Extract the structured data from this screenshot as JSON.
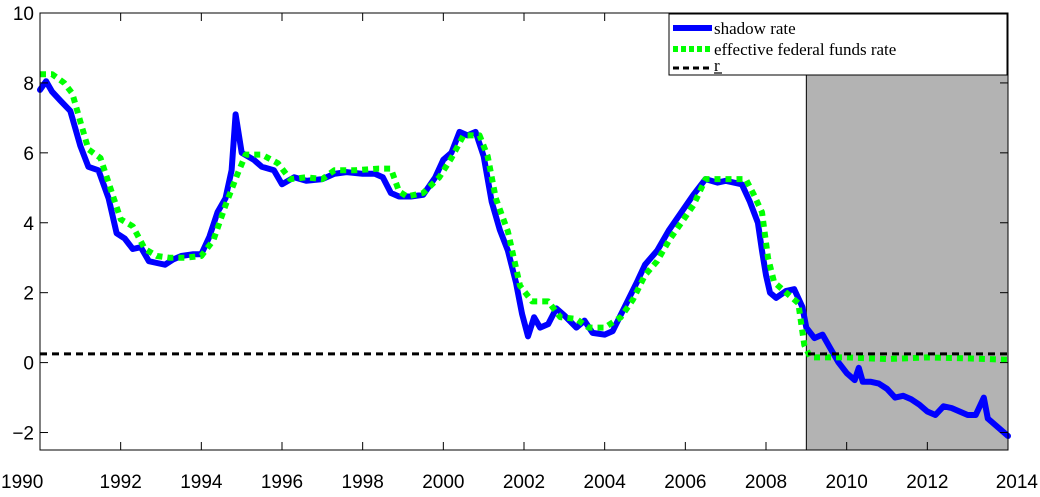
{
  "chart_data": {
    "type": "line",
    "title": "",
    "xlabel": "",
    "ylabel": "",
    "xlim": [
      1990,
      2014
    ],
    "ylim": [
      -2.5,
      10
    ],
    "xticks": [
      1990,
      1992,
      1994,
      1996,
      1998,
      2000,
      2002,
      2004,
      2006,
      2008,
      2010,
      2012,
      2014
    ],
    "yticks": [
      -2,
      0,
      2,
      4,
      6,
      8,
      10
    ],
    "xtick_labels": [
      "1990",
      "1992",
      "1994",
      "1996",
      "1998",
      "2000",
      "2002",
      "2004",
      "2006",
      "2008",
      "2010",
      "2012",
      "2014"
    ],
    "ytick_labels": [
      "−2",
      "0",
      "2",
      "4",
      "6",
      "8",
      "10"
    ],
    "grid": false,
    "legend_position": "top-right",
    "shaded_region": {
      "x": [
        2009,
        2014
      ],
      "color": "#b3b3b3"
    },
    "series": [
      {
        "name": "shadow rate",
        "style": "solid",
        "color": "#0000ff",
        "points": [
          [
            1990.0,
            7.8
          ],
          [
            1990.15,
            8.05
          ],
          [
            1990.3,
            7.75
          ],
          [
            1990.5,
            7.5
          ],
          [
            1990.75,
            7.2
          ],
          [
            1991.0,
            6.2
          ],
          [
            1991.2,
            5.6
          ],
          [
            1991.45,
            5.5
          ],
          [
            1991.7,
            4.7
          ],
          [
            1991.9,
            3.7
          ],
          [
            1992.1,
            3.55
          ],
          [
            1992.3,
            3.25
          ],
          [
            1992.5,
            3.3
          ],
          [
            1992.7,
            2.9
          ],
          [
            1992.9,
            2.85
          ],
          [
            1993.1,
            2.8
          ],
          [
            1993.3,
            2.95
          ],
          [
            1993.5,
            3.05
          ],
          [
            1993.8,
            3.1
          ],
          [
            1994.0,
            3.1
          ],
          [
            1994.2,
            3.6
          ],
          [
            1994.4,
            4.3
          ],
          [
            1994.6,
            4.7
          ],
          [
            1994.75,
            5.5
          ],
          [
            1994.85,
            7.1
          ],
          [
            1995.0,
            6.0
          ],
          [
            1995.3,
            5.8
          ],
          [
            1995.5,
            5.6
          ],
          [
            1995.8,
            5.5
          ],
          [
            1996.0,
            5.1
          ],
          [
            1996.3,
            5.3
          ],
          [
            1996.6,
            5.2
          ],
          [
            1997.0,
            5.25
          ],
          [
            1997.3,
            5.4
          ],
          [
            1997.6,
            5.45
          ],
          [
            1998.0,
            5.4
          ],
          [
            1998.3,
            5.4
          ],
          [
            1998.5,
            5.3
          ],
          [
            1998.7,
            4.85
          ],
          [
            1998.9,
            4.75
          ],
          [
            1999.2,
            4.75
          ],
          [
            1999.5,
            4.8
          ],
          [
            1999.8,
            5.3
          ],
          [
            2000.0,
            5.8
          ],
          [
            2000.2,
            6.0
          ],
          [
            2000.4,
            6.6
          ],
          [
            2000.6,
            6.5
          ],
          [
            2000.8,
            6.6
          ],
          [
            2001.0,
            5.9
          ],
          [
            2001.2,
            4.6
          ],
          [
            2001.4,
            3.8
          ],
          [
            2001.6,
            3.2
          ],
          [
            2001.8,
            2.3
          ],
          [
            2001.95,
            1.4
          ],
          [
            2002.1,
            0.75
          ],
          [
            2002.25,
            1.3
          ],
          [
            2002.4,
            1.0
          ],
          [
            2002.6,
            1.1
          ],
          [
            2002.8,
            1.55
          ],
          [
            2003.0,
            1.35
          ],
          [
            2003.3,
            1.0
          ],
          [
            2003.5,
            1.2
          ],
          [
            2003.7,
            0.85
          ],
          [
            2004.0,
            0.8
          ],
          [
            2004.2,
            0.9
          ],
          [
            2004.5,
            1.6
          ],
          [
            2004.8,
            2.3
          ],
          [
            2005.0,
            2.8
          ],
          [
            2005.3,
            3.2
          ],
          [
            2005.6,
            3.8
          ],
          [
            2005.9,
            4.3
          ],
          [
            2006.2,
            4.8
          ],
          [
            2006.5,
            5.25
          ],
          [
            2006.8,
            5.15
          ],
          [
            2007.0,
            5.2
          ],
          [
            2007.4,
            5.1
          ],
          [
            2007.6,
            4.6
          ],
          [
            2007.8,
            4.0
          ],
          [
            2007.9,
            3.2
          ],
          [
            2008.0,
            2.5
          ],
          [
            2008.1,
            2.0
          ],
          [
            2008.25,
            1.85
          ],
          [
            2008.5,
            2.05
          ],
          [
            2008.7,
            2.1
          ],
          [
            2008.9,
            1.6
          ],
          [
            2009.0,
            1.0
          ],
          [
            2009.2,
            0.7
          ],
          [
            2009.4,
            0.8
          ],
          [
            2009.6,
            0.4
          ],
          [
            2009.8,
            0.0
          ],
          [
            2010.0,
            -0.3
          ],
          [
            2010.2,
            -0.5
          ],
          [
            2010.3,
            -0.15
          ],
          [
            2010.4,
            -0.55
          ],
          [
            2010.6,
            -0.55
          ],
          [
            2010.8,
            -0.6
          ],
          [
            2011.0,
            -0.75
          ],
          [
            2011.2,
            -1.0
          ],
          [
            2011.4,
            -0.95
          ],
          [
            2011.6,
            -1.05
          ],
          [
            2011.8,
            -1.2
          ],
          [
            2012.0,
            -1.4
          ],
          [
            2012.2,
            -1.5
          ],
          [
            2012.4,
            -1.25
          ],
          [
            2012.6,
            -1.3
          ],
          [
            2012.8,
            -1.4
          ],
          [
            2013.0,
            -1.5
          ],
          [
            2013.2,
            -1.5
          ],
          [
            2013.4,
            -1.0
          ],
          [
            2013.5,
            -1.6
          ],
          [
            2013.7,
            -1.8
          ],
          [
            2014.0,
            -2.1
          ]
        ]
      },
      {
        "name": "effective federal funds rate",
        "style": "dotted",
        "color": "#00ff00",
        "points": [
          [
            1990.0,
            8.25
          ],
          [
            1990.3,
            8.25
          ],
          [
            1990.6,
            8.0
          ],
          [
            1990.8,
            7.7
          ],
          [
            1991.0,
            6.9
          ],
          [
            1991.2,
            6.1
          ],
          [
            1991.5,
            5.85
          ],
          [
            1991.8,
            4.8
          ],
          [
            1992.0,
            4.1
          ],
          [
            1992.3,
            3.9
          ],
          [
            1992.6,
            3.25
          ],
          [
            1992.9,
            3.05
          ],
          [
            1993.2,
            3.0
          ],
          [
            1993.6,
            3.0
          ],
          [
            1994.0,
            3.05
          ],
          [
            1994.3,
            3.5
          ],
          [
            1994.6,
            4.5
          ],
          [
            1994.9,
            5.4
          ],
          [
            1995.1,
            5.95
          ],
          [
            1995.5,
            5.95
          ],
          [
            1995.9,
            5.7
          ],
          [
            1996.2,
            5.25
          ],
          [
            1996.6,
            5.3
          ],
          [
            1997.0,
            5.25
          ],
          [
            1997.3,
            5.5
          ],
          [
            1997.8,
            5.5
          ],
          [
            1998.4,
            5.55
          ],
          [
            1998.7,
            5.55
          ],
          [
            1998.9,
            4.9
          ],
          [
            1999.1,
            4.75
          ],
          [
            1999.5,
            4.85
          ],
          [
            1999.9,
            5.3
          ],
          [
            2000.2,
            5.85
          ],
          [
            2000.5,
            6.5
          ],
          [
            2000.9,
            6.5
          ],
          [
            2001.1,
            5.9
          ],
          [
            2001.3,
            4.7
          ],
          [
            2001.6,
            3.75
          ],
          [
            2001.9,
            2.2
          ],
          [
            2002.2,
            1.75
          ],
          [
            2002.6,
            1.75
          ],
          [
            2002.9,
            1.3
          ],
          [
            2003.3,
            1.25
          ],
          [
            2003.6,
            1.0
          ],
          [
            2004.0,
            1.0
          ],
          [
            2004.4,
            1.3
          ],
          [
            2004.7,
            1.8
          ],
          [
            2005.0,
            2.5
          ],
          [
            2005.3,
            2.9
          ],
          [
            2005.6,
            3.5
          ],
          [
            2005.9,
            4.0
          ],
          [
            2006.2,
            4.5
          ],
          [
            2006.5,
            5.25
          ],
          [
            2007.0,
            5.25
          ],
          [
            2007.5,
            5.25
          ],
          [
            2007.7,
            4.8
          ],
          [
            2007.9,
            4.3
          ],
          [
            2008.05,
            3.0
          ],
          [
            2008.2,
            2.3
          ],
          [
            2008.5,
            2.0
          ],
          [
            2008.8,
            1.7
          ],
          [
            2008.95,
            0.5
          ],
          [
            2009.1,
            0.15
          ],
          [
            2010.0,
            0.15
          ],
          [
            2011.0,
            0.1
          ],
          [
            2012.0,
            0.15
          ],
          [
            2013.0,
            0.12
          ],
          [
            2014.0,
            0.08
          ]
        ]
      },
      {
        "name": "r",
        "style": "dashed",
        "color": "#000000",
        "points": [
          [
            1990.0,
            0.25
          ],
          [
            2014.0,
            0.25
          ]
        ]
      }
    ]
  }
}
